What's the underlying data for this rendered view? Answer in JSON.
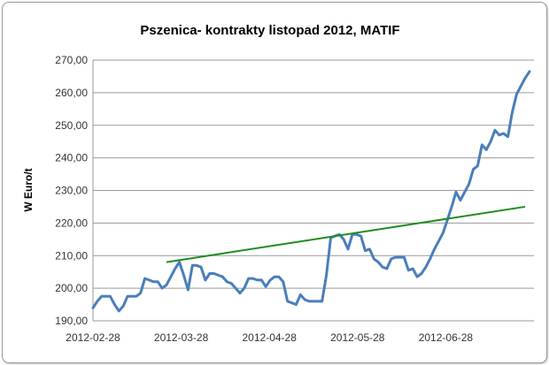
{
  "chart_data": {
    "type": "line",
    "title": "Pszenica- kontrakty listopad 2012, MATIF",
    "xlabel": "",
    "ylabel": "W Euro/t",
    "ylim": [
      190,
      270
    ],
    "grid": true,
    "y_ticks": [
      "190,00",
      "200,00",
      "210,00",
      "220,00",
      "230,00",
      "240,00",
      "250,00",
      "260,00",
      "270,00"
    ],
    "x_ticks": [
      "2012-02-28",
      "2012-03-28",
      "2012-04-28",
      "2012-05-28",
      "2012-06-28"
    ],
    "colors": {
      "price": "#4a7ebb",
      "trend": "#1e8c1e",
      "grid": "#9a9a9a"
    },
    "series": [
      {
        "name": "",
        "values": [
          194.0,
          196.0,
          197.5,
          197.5,
          197.5,
          195.0,
          193.0,
          194.5,
          197.5,
          197.5,
          197.5,
          198.5,
          203.0,
          202.5,
          202.0,
          202.0,
          200.0,
          201.0,
          203.5,
          206.0,
          208.0,
          204.0,
          199.5,
          207.0,
          207.0,
          206.5,
          202.5,
          204.5,
          204.5,
          204.0,
          203.5,
          202.0,
          201.5,
          200.0,
          198.5,
          200.0,
          203.0,
          203.0,
          202.5,
          202.5,
          200.5,
          202.5,
          203.5,
          203.5,
          202.0,
          196.0,
          195.5,
          195.0,
          198.0,
          196.5,
          196.0,
          196.0,
          196.0,
          196.0,
          204.0,
          215.5,
          216.0,
          216.5,
          215.0,
          212.0,
          216.5,
          216.5,
          216.0,
          211.5,
          212.0,
          209.0,
          208.0,
          206.5,
          206.0,
          209.0,
          209.5,
          209.5,
          209.5,
          205.5,
          206.0,
          203.5,
          204.5,
          206.5,
          209.0,
          212.0,
          214.5,
          217.0,
          221.0,
          225.0,
          229.5,
          227.0,
          229.5,
          232.0,
          236.5,
          237.5,
          244.0,
          242.5,
          245.0,
          248.5,
          247.0,
          247.5,
          246.5,
          254.0,
          259.5,
          262.0,
          264.5,
          266.5
        ]
      },
      {
        "name": "",
        "type": "trend",
        "values": [
          208.0,
          225.0
        ]
      }
    ]
  }
}
